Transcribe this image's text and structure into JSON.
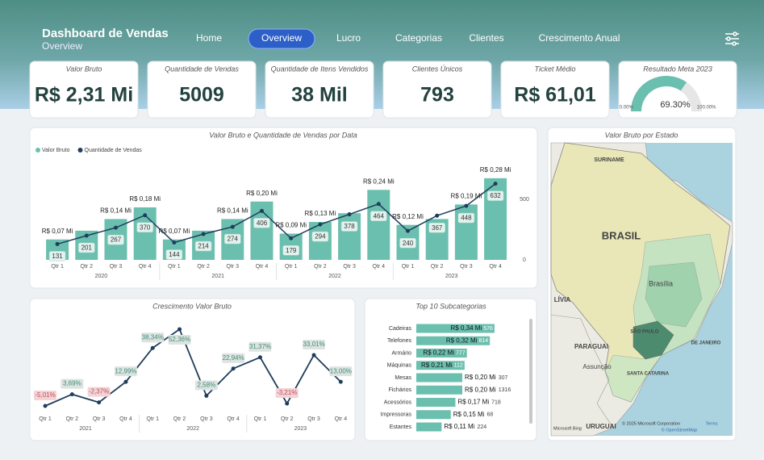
{
  "header": {
    "title": "Dashboard de Vendas",
    "subtitle": "Overview"
  },
  "nav": {
    "items": [
      "Home",
      "Overview",
      "Lucro",
      "Categorias",
      "Clientes",
      "Crescimento Anual"
    ],
    "active": 1
  },
  "kpis": [
    {
      "label": "Valor Bruto",
      "value": "R$ 2,31 Mi"
    },
    {
      "label": "Quantidade de Vendas",
      "value": "5009"
    },
    {
      "label": "Quantidade de Itens Vendidos",
      "value": "38 Mil"
    },
    {
      "label": "Clientes Únicos",
      "value": "793"
    },
    {
      "label": "Ticket Médio",
      "value": "R$ 61,01"
    }
  ],
  "chart_data": [
    {
      "type": "combo",
      "title": "Valor Bruto e Quantidade de Vendas por Data",
      "categories": [
        "Qtr 1",
        "Qtr 2",
        "Qtr 3",
        "Qtr 4",
        "Qtr 1",
        "Qtr 2",
        "Qtr 3",
        "Qtr 4",
        "Qtr 1",
        "Qtr 2",
        "Qtr 3",
        "Qtr 4",
        "Qtr 1",
        "Qtr 2",
        "Qtr 3",
        "Qtr 4"
      ],
      "groups": [
        "2020",
        "2021",
        "2022",
        "2023"
      ],
      "series": [
        {
          "name": "Valor Bruto",
          "type": "bar",
          "color": "#6bbfae",
          "values": [
            0.07,
            0.1,
            0.14,
            0.18,
            0.07,
            0.1,
            0.14,
            0.2,
            0.09,
            0.13,
            0.16,
            0.24,
            0.12,
            0.14,
            0.19,
            0.28
          ],
          "value_labels": [
            "R$ 0,07 Mi",
            null,
            "R$ 0,14 Mi",
            "R$ 0,18 Mi",
            "R$ 0,07 Mi",
            null,
            "R$ 0,14 Mi",
            "R$ 0,20 Mi",
            "R$ 0,09 Mi",
            "R$ 0,13 Mi",
            null,
            "R$ 0,24 Mi",
            "R$ 0,12 Mi",
            null,
            "R$ 0,19 Mi",
            "R$ 0,28 Mi"
          ]
        },
        {
          "name": "Quantidade de Vendas",
          "type": "line",
          "axis": "y2",
          "color": "#1f3d5c",
          "values": [
            131,
            201,
            267,
            370,
            144,
            214,
            274,
            406,
            179,
            294,
            378,
            464,
            240,
            367,
            448,
            632
          ]
        }
      ],
      "ylim": [
        0,
        0.31
      ],
      "y2lim": [
        0,
        750
      ],
      "y2ticks": [
        0,
        500
      ],
      "legend": "top-left"
    },
    {
      "type": "line",
      "title": "Crescimento Valor Bruto",
      "categories": [
        "Qtr 1",
        "Qtr 2",
        "Qtr 3",
        "Qtr 4",
        "Qtr 1",
        "Qtr 2",
        "Qtr 3",
        "Qtr 4",
        "Qtr 1",
        "Qtr 2",
        "Qtr 3",
        "Qtr 4"
      ],
      "groups": [
        "2021",
        "2022",
        "2023"
      ],
      "color": "#1f3d5c",
      "values": [
        -5.01,
        3.69,
        -2.37,
        12.99,
        38.34,
        52.36,
        2.58,
        22.94,
        31.37,
        -3.21,
        33.01,
        13.0
      ],
      "value_labels": [
        "-5,01%",
        "3,69%",
        "-2,37%",
        "12,99%",
        "38,34%",
        "52,36%",
        "2,58%",
        "22,94%",
        "31,37%",
        "-3,21%",
        "33,01%",
        "13,00%"
      ],
      "ylim": [
        -9,
        55
      ]
    },
    {
      "type": "hbar",
      "title": "Top 10 Subcategorias",
      "categories": [
        "Cadeiras",
        "Telefones",
        "Armário",
        "Máquinas",
        "Mesas",
        "Fichários",
        "Acessórios",
        "Impressoras",
        "Estantes"
      ],
      "values": [
        0.34,
        0.32,
        0.22,
        0.21,
        0.2,
        0.2,
        0.17,
        0.15,
        0.11
      ],
      "value_labels": [
        "R$ 0,34 Mi",
        "R$ 0,32 Mi",
        "R$ 0,22 Mi",
        "R$ 0,21 Mi",
        "R$ 0,20 Mi",
        "R$ 0,20 Mi",
        "R$ 0,17 Mi",
        "R$ 0,15 Mi",
        "R$ 0,11 Mi"
      ],
      "quantities": [
        576,
        814,
        777,
        112,
        307,
        1316,
        718,
        68,
        224
      ],
      "color": "#6bbfae",
      "xlim": [
        0,
        0.4
      ]
    },
    {
      "type": "gauge",
      "title": "Resultado Meta 2023",
      "value": 69.3,
      "value_label": "69.30%",
      "ylim": [
        0,
        100
      ],
      "yticks": [
        {
          "value": 0,
          "label": "0.00%"
        },
        {
          "value": 100,
          "label": "100.00%"
        }
      ],
      "color": "#6bbfae"
    }
  ],
  "map": {
    "title": "Valor Bruto por Estado",
    "labels": [
      "SURINAME",
      "BRASIL",
      "Brasília",
      "SÃO PAULO",
      "DE JANEIRO",
      "PARAGUAI",
      "Assunção",
      "SANTA CATARINA",
      "URUGUAI",
      "LÍVIA"
    ],
    "attribution": [
      "Microsoft Bing",
      "© 2025 Microsoft Corporation",
      "Terms",
      "© OpenStreetMap"
    ]
  }
}
